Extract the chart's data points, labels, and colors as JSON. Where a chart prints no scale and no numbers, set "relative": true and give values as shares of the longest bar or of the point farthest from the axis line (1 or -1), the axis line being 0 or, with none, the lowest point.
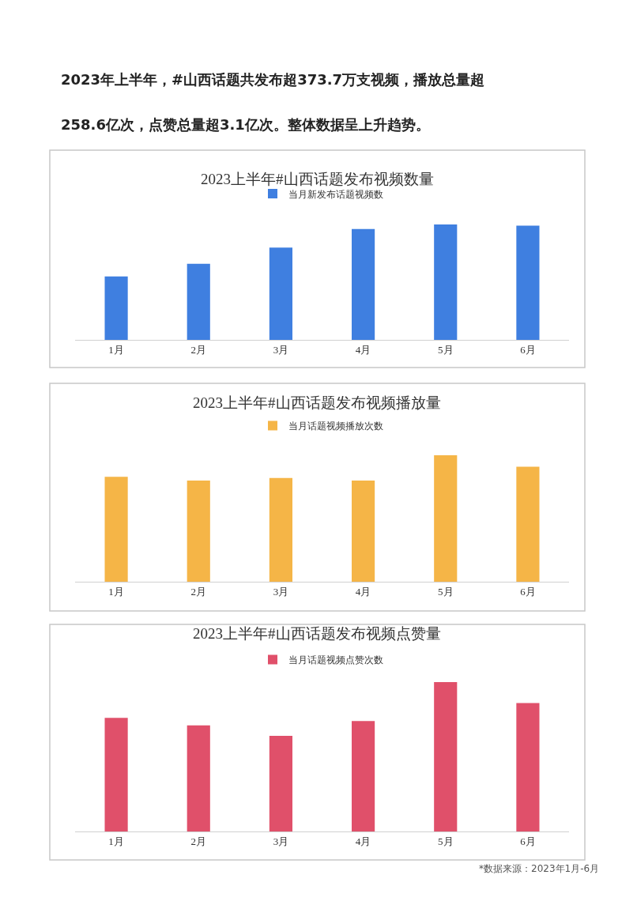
{
  "chart_data": [
    {
      "type": "bar",
      "title": "2023上半年#山西话题发布视频数量",
      "relative": true,
      "legend": "top",
      "categories": [
        "1月",
        "2月",
        "3月",
        "4月",
        "5月",
        "6月"
      ],
      "series": [
        {
          "name": "当月新发布话题视频数",
          "color": "#3f7fe0",
          "values": [
            0.55,
            0.66,
            0.8,
            0.96,
            1,
            0.99
          ]
        }
      ],
      "annotations": [
        "2023年上半年，#山西话题共发布超373.7万支视频，播放总量超",
        "258.6亿次，点赞总量超3.1亿次。整体数据呈上升趋势。"
      ]
    },
    {
      "type": "bar",
      "title": "2023上半年#山西话题发布视频播放量",
      "relative": true,
      "legend": "top",
      "categories": [
        "1月",
        "2月",
        "3月",
        "4月",
        "5月",
        "6月"
      ],
      "series": [
        {
          "name": "当月话题视频播放次数",
          "color": "#f5b547",
          "values": [
            0.83,
            0.8,
            0.82,
            0.8,
            1,
            0.91
          ]
        }
      ]
    },
    {
      "type": "bar",
      "title": "2023上半年#山西话题发布视频点赞量",
      "relative": true,
      "legend": "top",
      "categories": [
        "1月",
        "2月",
        "3月",
        "4月",
        "5月",
        "6月"
      ],
      "series": [
        {
          "name": "当月话题视频点赞次数",
          "color": "#e0506a",
          "values": [
            0.76,
            0.71,
            0.64,
            0.74,
            1,
            0.86
          ]
        }
      ],
      "annotations": [
        "*数据来源：2023年1月-6月"
      ]
    }
  ]
}
